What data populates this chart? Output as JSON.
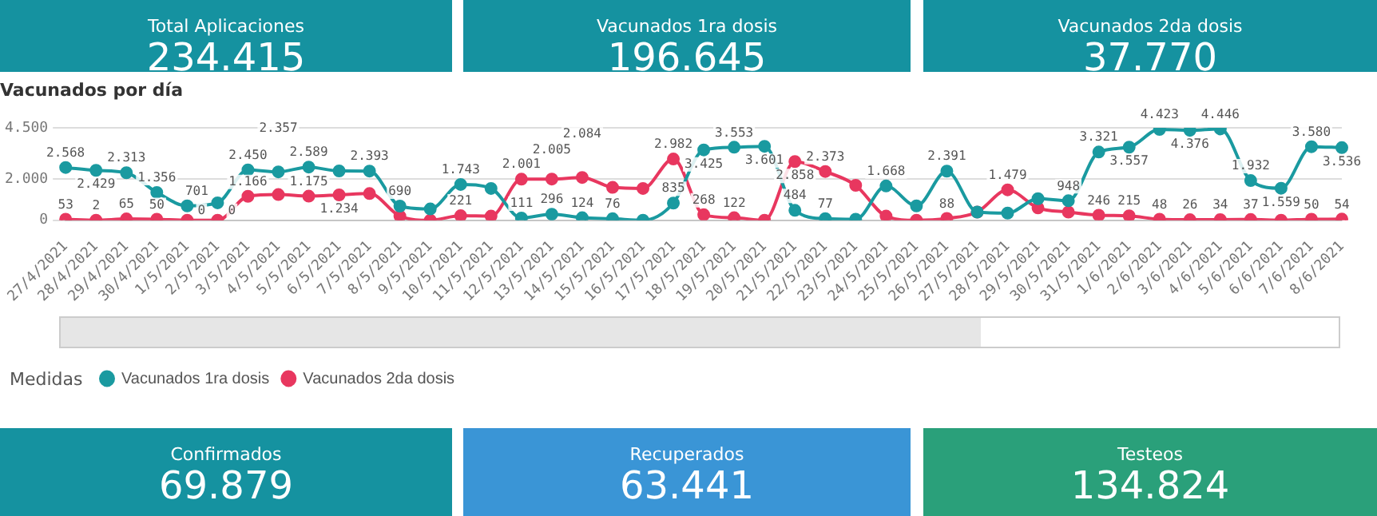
{
  "chart_data": [
    {
      "type": "other",
      "title": "Total Aplicaciones",
      "annotations": [
        "234.415"
      ],
      "color": "#1592a0"
    },
    {
      "type": "other",
      "title": "Vacunados 1ra dosis",
      "annotations": [
        "196.645"
      ],
      "color": "#1592a0"
    },
    {
      "type": "other",
      "title": "Vacunados 2da dosis",
      "annotations": [
        "37.770"
      ],
      "color": "#1592a0"
    },
    {
      "type": "line",
      "title": "Vacunados por día",
      "legend_title": "Medidas",
      "legend": "bottom left",
      "grid": "y",
      "marker": "circle",
      "line_style": "solid",
      "categories": [
        "27/4/2021",
        "28/4/2021",
        "29/4/2021",
        "30/4/2021",
        "1/5/2021",
        "2/5/2021",
        "3/5/2021",
        "4/5/2021",
        "5/5/2021",
        "6/5/2021",
        "7/5/2021",
        "8/5/2021",
        "9/5/2021",
        "10/5/2021",
        "11/5/2021",
        "12/5/2021",
        "13/5/2021",
        "14/5/2021",
        "15/5/2021",
        "16/5/2021",
        "17/5/2021",
        "18/5/2021",
        "19/5/2021",
        "20/5/2021",
        "21/5/2021",
        "22/5/2021",
        "23/5/2021",
        "24/5/2021",
        "25/5/2021",
        "26/5/2021",
        "27/5/2021",
        "28/5/2021",
        "29/5/2021",
        "30/5/2021",
        "31/5/2021",
        "1/6/2021",
        "2/6/2021",
        "3/6/2021",
        "4/6/2021",
        "5/6/2021",
        "6/6/2021",
        "7/6/2021",
        "8/6/2021"
      ],
      "ylim": [
        0,
        4500
      ],
      "yticks": [
        0,
        {
          "value": 2000,
          "label": "2.000"
        },
        {
          "value": 4500,
          "label": "4.500"
        }
      ],
      "series": [
        {
          "name": "Vacunados 1ra dosis",
          "color": "#1a9aa0",
          "values": [
            2568,
            2429,
            2313,
            1356,
            701,
            850,
            2450,
            2357,
            2589,
            2400,
            2393,
            690,
            550,
            1743,
            1550,
            111,
            296,
            124,
            76,
            0,
            835,
            3425,
            3553,
            3601,
            484,
            77,
            50,
            1668,
            700,
            2391,
            400,
            350,
            1050,
            948,
            3321,
            3557,
            4423,
            4376,
            4446,
            1932,
            1559,
            3580,
            3536
          ],
          "value_labels": [
            "2.568",
            "2.429",
            "2.313",
            "1.356",
            "701",
            null,
            "2.450",
            "2.357",
            "2.589",
            null,
            "2.393",
            "690",
            null,
            "1.743",
            null,
            "111",
            "296",
            "124",
            "76",
            null,
            "835",
            "3.425",
            "3.553",
            "3.601",
            "484",
            "77",
            null,
            "1.668",
            null,
            "2.391",
            null,
            null,
            null,
            "948",
            "3.321",
            "3.557",
            "4.423",
            "4.376",
            "4.446",
            "1.932",
            "1.559",
            "3.580",
            "3.536"
          ]
        },
        {
          "name": "Vacunados 2da dosis",
          "color": "#e8375f",
          "values": [
            53,
            2,
            65,
            50,
            0,
            0,
            1166,
            1250,
            1175,
            1234,
            1300,
            200,
            0,
            221,
            200,
            2001,
            2005,
            2084,
            1600,
            1550,
            2982,
            268,
            122,
            0,
            2858,
            2373,
            1700,
            200,
            0,
            88,
            400,
            1479,
            600,
            400,
            246,
            215,
            48,
            26,
            34,
            37,
            0,
            50,
            54
          ],
          "value_labels": [
            "53",
            "2",
            "65",
            "50",
            "0",
            "0",
            "1.166",
            null,
            "1.175",
            "1.234",
            null,
            null,
            null,
            "221",
            null,
            "2.001",
            "2.005",
            "2.084",
            null,
            null,
            "2.982",
            "268",
            "122",
            null,
            "2.858",
            "2.373",
            null,
            null,
            null,
            "88",
            null,
            "1.479",
            null,
            null,
            "246",
            "215",
            "48",
            "26",
            "34",
            "37",
            null,
            "50",
            "54"
          ]
        }
      ]
    },
    {
      "type": "other",
      "title": "Confirmados",
      "annotations": [
        "69.879"
      ],
      "color": "#1592a0"
    },
    {
      "type": "other",
      "title": "Recuperados",
      "annotations": [
        "63.441"
      ],
      "color": "#3a95d6"
    },
    {
      "type": "other",
      "title": "Testeos",
      "annotations": [
        "134.824"
      ],
      "color": "#2aa07a"
    }
  ]
}
